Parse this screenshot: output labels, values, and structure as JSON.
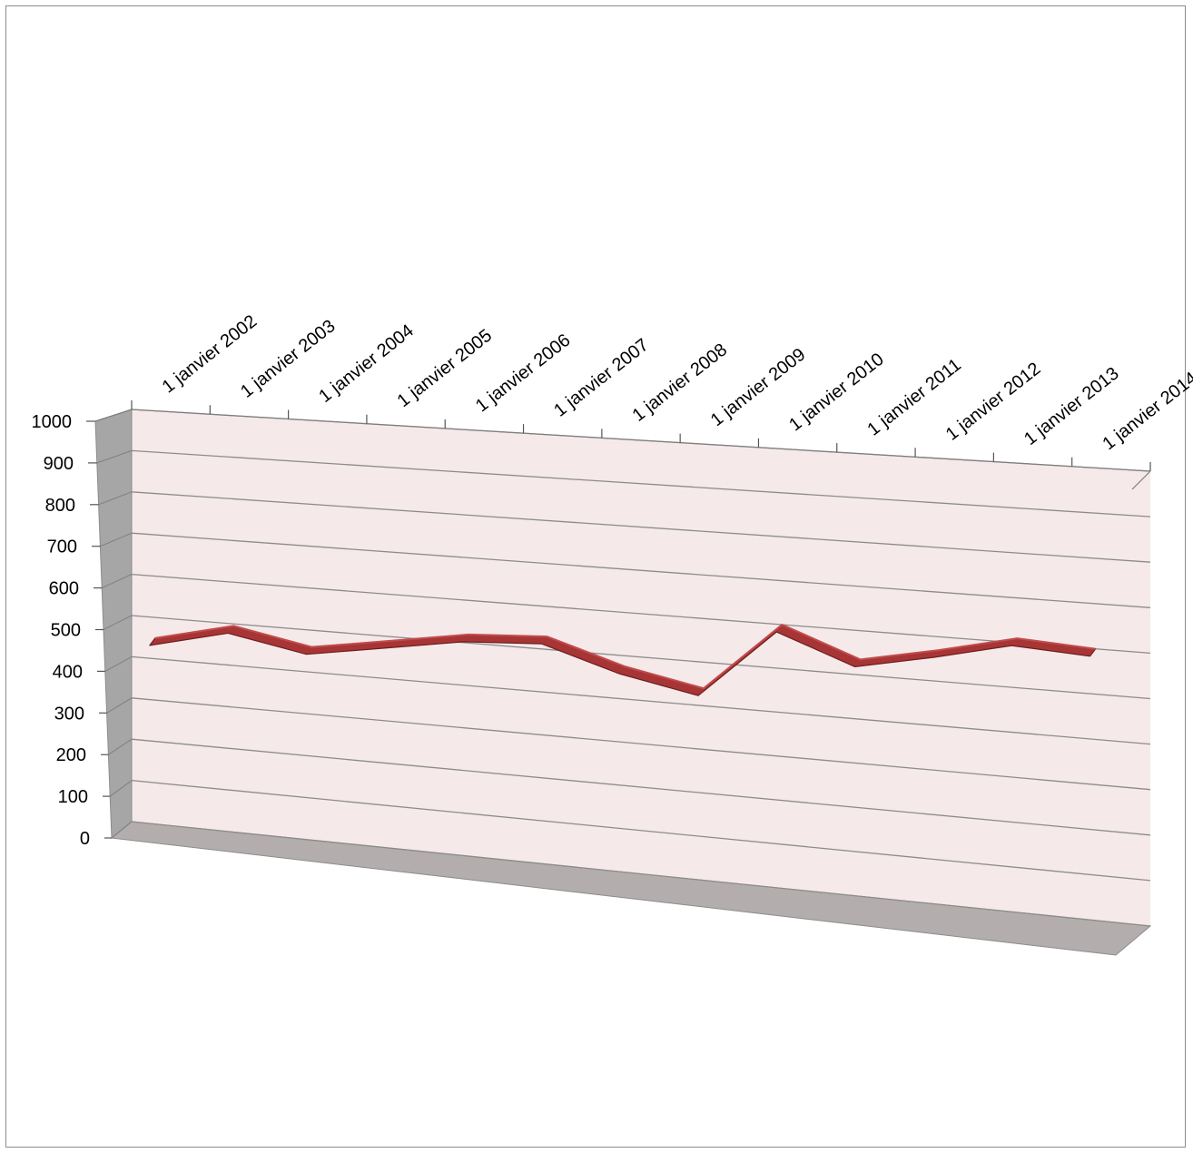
{
  "chart_data": {
    "type": "line",
    "title": "",
    "xlabel": "",
    "ylabel": "",
    "style": "3d",
    "categories": [
      "1 janvier 2002",
      "1 janvier 2003",
      "1 janvier 2004",
      "1 janvier 2005",
      "1 janvier 2006",
      "1 janvier 2007",
      "1 janvier 2008",
      "1 janvier 2009",
      "1 janvier 2010",
      "1 janvier 2011",
      "1 janvier 2012",
      "1 janvier 2013",
      "1 janvier 2014"
    ],
    "series": [
      {
        "values": [
          450,
          495,
          460,
          490,
          520,
          530,
          475,
          440,
          600,
          535,
          570,
          610,
          600
        ]
      }
    ],
    "y_ticks": [
      "0",
      "100",
      "200",
      "300",
      "400",
      "500",
      "600",
      "700",
      "800",
      "900",
      "1000"
    ],
    "ylim": [
      0,
      1000
    ],
    "grid": true,
    "legend": "none",
    "colors": {
      "series": "#a83535",
      "series_edge": "#6e1f1f",
      "back_wall": "#f5e9ea",
      "side_wall": "#a6a6a6",
      "floor": "#b3adad",
      "gridline": "#8c8c8c"
    }
  }
}
